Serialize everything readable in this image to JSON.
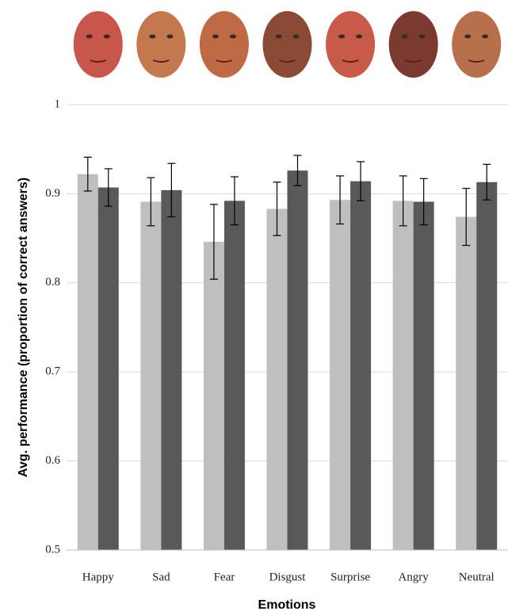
{
  "chart_data": {
    "type": "bar",
    "x_label": "Emotions",
    "y_label": "Avg. performance (proportion of correct answers)",
    "categories": [
      "Happy",
      "Sad",
      "Fear",
      "Disgust",
      "Surprise",
      "Angry",
      "Neutral"
    ],
    "series": [
      {
        "color": "#bfbfbf",
        "values": [
          0.922,
          0.891,
          0.846,
          0.883,
          0.893,
          0.892,
          0.874
        ],
        "errors": [
          0.019,
          0.027,
          0.042,
          0.03,
          0.027,
          0.028,
          0.032
        ]
      },
      {
        "color": "#595959",
        "values": [
          0.907,
          0.904,
          0.892,
          0.926,
          0.914,
          0.891,
          0.913
        ],
        "errors": [
          0.021,
          0.03,
          0.027,
          0.017,
          0.022,
          0.026,
          0.02
        ]
      }
    ],
    "ylim": [
      0.5,
      1
    ],
    "yticks": [
      0.5,
      0.6,
      0.7,
      0.8,
      0.9,
      1
    ],
    "grid": true
  }
}
